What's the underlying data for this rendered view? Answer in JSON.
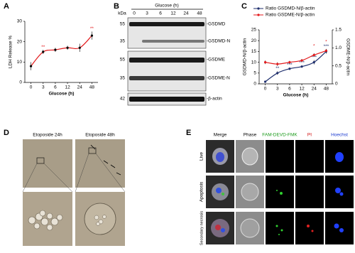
{
  "chart_data": [
    {
      "type": "line",
      "label": "A",
      "ylabel": "LDH Release %",
      "xlabel": "Glucose (h)",
      "categories": [
        "0",
        "3",
        "6",
        "12",
        "24",
        "48"
      ],
      "series": [
        {
          "color": "#e31a1c",
          "marker_color": "#000000",
          "values": [
            8,
            15,
            16,
            17,
            17,
            23
          ],
          "errors": [
            2,
            1,
            1,
            1,
            2,
            2
          ],
          "significance": [
            null,
            "**",
            null,
            null,
            null,
            "**"
          ]
        }
      ],
      "ylim": [
        0,
        30
      ],
      "yticks": [
        0,
        10,
        20,
        30
      ]
    },
    {
      "type": "line",
      "label": "C",
      "ylabel": "GSDMD-N/β-actin",
      "y2label": "GSDME-N/β-actin",
      "xlabel": "Glucose (h)",
      "categories": [
        "0",
        "3",
        "6",
        "12",
        "24",
        "48"
      ],
      "series": [
        {
          "name": "Ratio GSDMD-N/β-actin",
          "color": "#1f2f6e",
          "values": [
            1,
            5,
            7,
            8,
            10,
            15
          ],
          "errors": [
            0.3,
            0.8,
            0.5,
            0.5,
            1,
            1
          ],
          "significance": [
            null,
            "**",
            "***",
            "***",
            "***",
            "***"
          ]
        },
        {
          "name": "Ratio GSDME-N/β-actin",
          "color": "#e31a1c",
          "axis": "y2",
          "values": [
            0.6,
            0.55,
            0.6,
            0.65,
            0.8,
            0.92
          ],
          "errors": [
            0.05,
            0.05,
            0.04,
            0.04,
            0.05,
            0.05
          ],
          "significance": [
            null,
            null,
            null,
            null,
            "*",
            "*"
          ]
        }
      ],
      "ylim": [
        0,
        25
      ],
      "yticks": [
        0,
        5,
        10,
        15,
        20,
        25
      ],
      "y2lim": [
        0,
        1.5
      ],
      "y2ticks": [
        0,
        0.5,
        {
          "value": 1,
          "label": "1.0"
        },
        1.5
      ]
    }
  ],
  "blot": {
    "label": "B",
    "header": "Glucose (h)",
    "unit": "kDa",
    "lanes": [
      "0",
      "3",
      "6",
      "12",
      "24",
      "48"
    ],
    "markers": [
      "55",
      "35",
      "55",
      "35",
      "42"
    ],
    "bands": [
      "-GSDMD",
      "-GSDMD-N",
      "-GSDME",
      "-GSDME-N",
      "-β-actin"
    ]
  },
  "microscopy": {
    "label": "D",
    "titles": [
      "Etoposide 24h",
      "Etoposide 48h"
    ]
  },
  "fluorescence": {
    "label": "E",
    "columns": [
      "Merge",
      "Phase",
      "FAM-DEVD-FMK",
      "PI",
      "Hoechst"
    ],
    "rows": [
      "Live",
      "Apoptosis",
      "Secondary necrosis"
    ]
  }
}
